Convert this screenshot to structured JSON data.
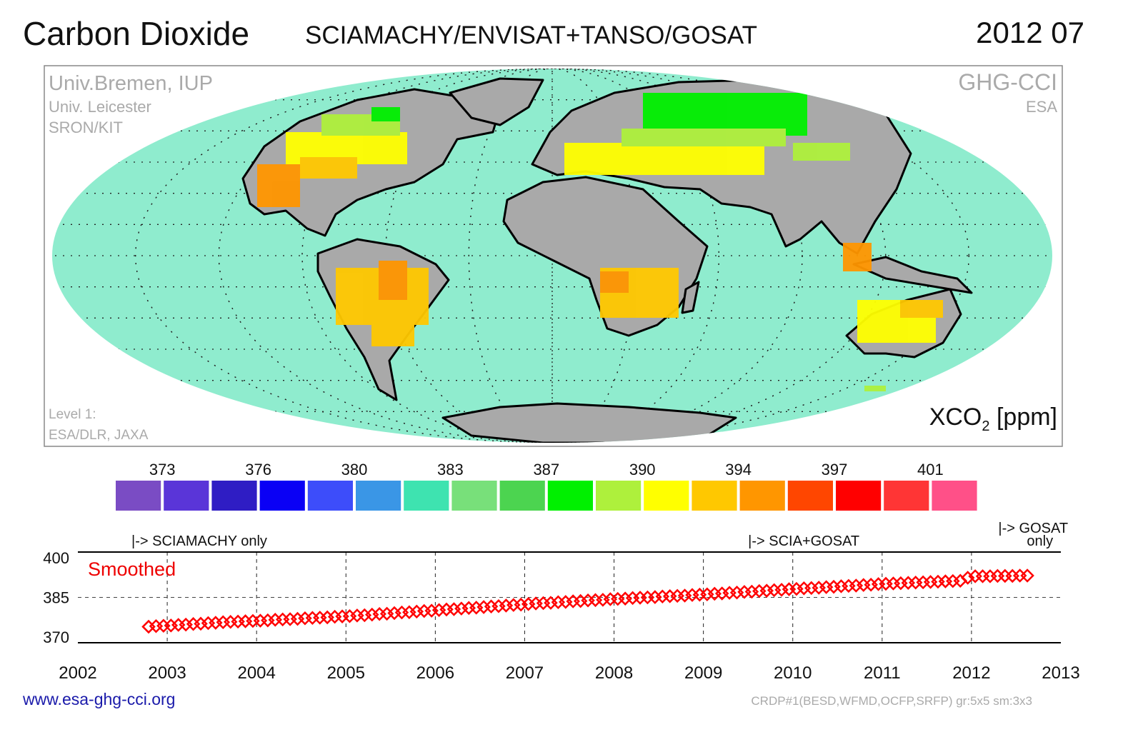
{
  "header": {
    "title": "Carbon Dioxide",
    "subtitle": "SCIAMACHY/ENVISAT+TANSO/GOSAT",
    "date": "2012 07"
  },
  "map": {
    "credits_left": [
      "Univ.Bremen, IUP",
      "Univ. Leicester",
      "SRON/KIT"
    ],
    "credits_right": [
      "GHG-CCI",
      "ESA"
    ],
    "level1_credit": [
      "Level 1:",
      "ESA/DLR, JAXA"
    ],
    "unit_label": "XCO",
    "unit_sub": "2",
    "unit_suffix": " [ppm]",
    "ocean_color": "#8fecce",
    "land_nodata_color": "#a9a9a9"
  },
  "colorbar": {
    "colors": [
      "#7a4cc4",
      "#5a35d8",
      "#2f1dc4",
      "#0a00f5",
      "#3d4dfa",
      "#3a96e6",
      "#3ee3b0",
      "#78e07a",
      "#4cd450",
      "#00f000",
      "#aef03c",
      "#ffff00",
      "#ffc800",
      "#ff9600",
      "#ff4600",
      "#ff0000",
      "#ff3535",
      "#ff5088"
    ],
    "tick_labels": [
      "373",
      "376",
      "380",
      "383",
      "387",
      "390",
      "394",
      "397",
      "401"
    ]
  },
  "chart_data": {
    "type": "line",
    "title": "",
    "xlabel": "",
    "ylabel": "",
    "xlim": [
      2002,
      2013
    ],
    "ylim": [
      370,
      400
    ],
    "x_ticks": [
      "2002",
      "2003",
      "2004",
      "2005",
      "2006",
      "2007",
      "2008",
      "2009",
      "2010",
      "2011",
      "2012",
      "2013"
    ],
    "y_ticks": [
      "370",
      "385",
      "400"
    ],
    "grid": "dashed, vertical at each year, horizontal at 385",
    "legend_label": "Smoothed",
    "series": [
      {
        "name": "Smoothed",
        "color": "#ff0000",
        "marker": "diamond",
        "start_month": "2002-10",
        "values": [
          375.3,
          375.5,
          375.6,
          375.7,
          375.9,
          376.0,
          376.2,
          376.3,
          376.5,
          376.6,
          376.8,
          376.9,
          377.0,
          377.1,
          377.2,
          377.3,
          377.4,
          377.6,
          377.7,
          377.8,
          377.9,
          378.1,
          378.2,
          378.3,
          378.4,
          378.6,
          378.7,
          378.8,
          379.0,
          379.1,
          379.3,
          379.5,
          379.6,
          379.8,
          380.0,
          380.1,
          380.3,
          380.5,
          380.6,
          380.8,
          381.0,
          381.1,
          381.3,
          381.5,
          381.6,
          381.8,
          382.0,
          382.1,
          382.3,
          382.5,
          382.6,
          382.8,
          383.0,
          383.1,
          383.2,
          383.4,
          383.5,
          383.7,
          383.8,
          384.0,
          384.1,
          384.2,
          384.4,
          384.5,
          384.6,
          384.8,
          384.9,
          385.0,
          385.1,
          385.3,
          385.4,
          385.5,
          385.6,
          385.8,
          385.9,
          386.0,
          386.2,
          386.3,
          386.5,
          386.6,
          386.8,
          386.9,
          387.1,
          387.2,
          387.4,
          387.5,
          387.7,
          387.8,
          388.0,
          388.1,
          388.2,
          388.4,
          388.5,
          388.7,
          388.8,
          388.9,
          389.1,
          389.2,
          389.4,
          389.5,
          389.6,
          389.7,
          389.8,
          389.9,
          390.0,
          390.1,
          390.2,
          390.3,
          390.4,
          390.5,
          391.5,
          392.0,
          392.0,
          392.0,
          392.1,
          392.1,
          392.1,
          392.2,
          392.2
        ]
      }
    ],
    "annotations": [
      {
        "text": "|-> SCIAMACHY only",
        "x": 2002.6
      },
      {
        "text": "|-> SCIA+GOSAT",
        "x": 2009.5
      },
      {
        "text": "|-> GOSAT",
        "text2": "only",
        "x": 2012.3
      }
    ]
  },
  "footer": {
    "url": "www.esa-ghg-cci.org",
    "product_info": "CRDP#1(BESD,WFMD,OCFP,SRFP) gr:5x5 sm:3x3"
  }
}
